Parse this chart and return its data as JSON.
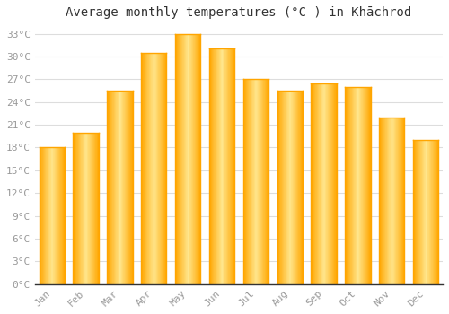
{
  "title": "Average monthly temperatures (°C ) in Khāchrod",
  "months": [
    "Jan",
    "Feb",
    "Mar",
    "Apr",
    "May",
    "Jun",
    "Jul",
    "Aug",
    "Sep",
    "Oct",
    "Nov",
    "Dec"
  ],
  "values": [
    18.0,
    20.0,
    25.5,
    30.5,
    33.0,
    31.0,
    27.0,
    25.5,
    26.5,
    26.0,
    22.0,
    19.0
  ],
  "bar_color_light": "#FFD580",
  "bar_color_dark": "#FFA500",
  "background_color": "#FFFFFF",
  "grid_color": "#DDDDDD",
  "ytick_step": 3,
  "ymin": 0,
  "ymax": 34,
  "title_fontsize": 10,
  "tick_fontsize": 8,
  "tick_color": "#999999",
  "spine_color": "#333333"
}
